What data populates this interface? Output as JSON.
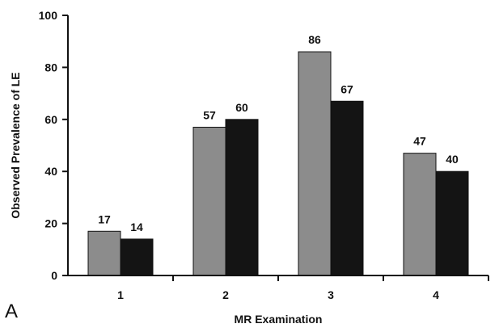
{
  "panel_letter": "A",
  "chart_data": {
    "type": "bar",
    "categories": [
      "1",
      "2",
      "3",
      "4"
    ],
    "series": [
      {
        "values": [
          17,
          57,
          86,
          47
        ],
        "color": "#8c8c8c"
      },
      {
        "values": [
          14,
          60,
          67,
          40
        ],
        "color": "#141414"
      }
    ],
    "xlabel": "MR Examination",
    "ylabel": "Observed Prevalence of LE",
    "ylim": [
      0,
      100
    ],
    "yticks": [
      0,
      20,
      40,
      60,
      80,
      100
    ],
    "grid": false,
    "legend": "none"
  }
}
